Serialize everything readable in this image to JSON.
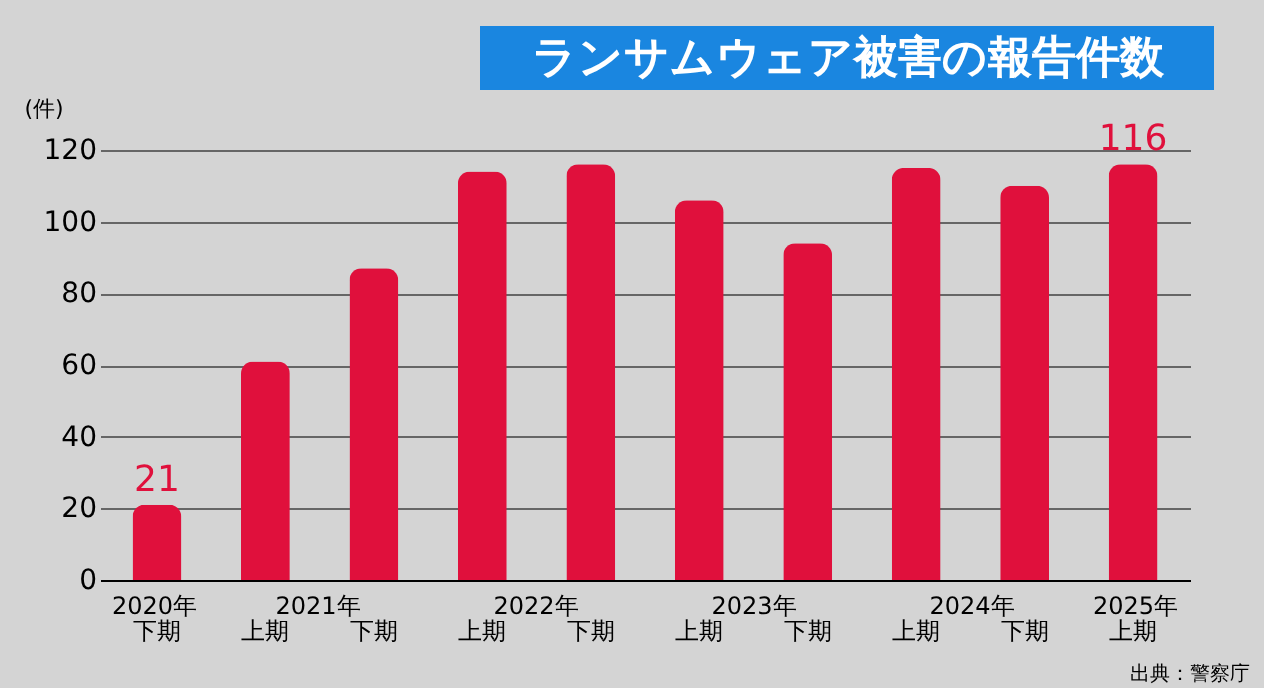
{
  "chart_data": {
    "type": "bar",
    "title": "ランサムウェア被害の報告件数",
    "ylabel": "(件)",
    "categories": [
      "下期",
      "上期",
      "下期",
      "上期",
      "下期",
      "上期",
      "下期",
      "上期",
      "下期",
      "上期"
    ],
    "values": [
      21,
      61,
      87,
      114,
      116,
      106,
      94,
      115,
      110,
      116
    ],
    "value_labels": [
      "21",
      null,
      null,
      null,
      null,
      null,
      null,
      null,
      null,
      "116"
    ],
    "color": "#e0103c",
    "ylim": [
      0,
      120
    ],
    "yticks": [
      0,
      20,
      40,
      60,
      80,
      100,
      120
    ],
    "grid": "y",
    "annotations": [
      "2020年",
      "2021年",
      "2022年",
      "2023年",
      "2024年",
      "2025年",
      "出典：警察庁"
    ]
  }
}
